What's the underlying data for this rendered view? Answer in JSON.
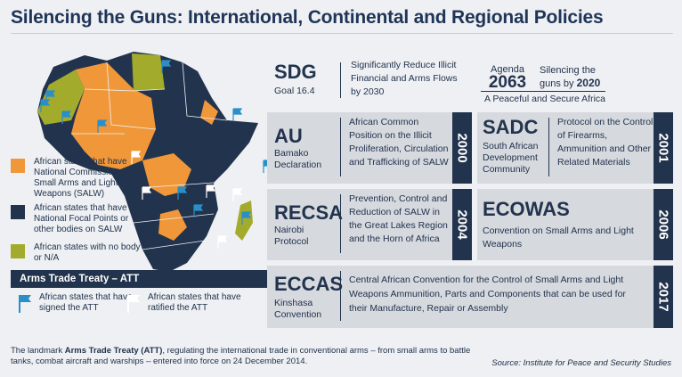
{
  "title": "Silencing the Guns: International, Continental and Regional Policies",
  "colors": {
    "orange": "#f0973a",
    "navy": "#22334d",
    "olive": "#a3ab2c",
    "flag_blue": "#2a8fc8",
    "flag_white": "#ffffff"
  },
  "legend": [
    {
      "color": "#f0973a",
      "text": "African states that have National Commissions on Small Arms and Light Weapons (SALW)"
    },
    {
      "color": "#22334d",
      "text": "African states that have National Focal Points or other bodies on SALW"
    },
    {
      "color": "#a3ab2c",
      "text": "African states with no body or N/A"
    }
  ],
  "att": {
    "header": "Arms Trade Treaty – ATT",
    "signed": "African states that have signed the ATT",
    "ratified": "African states that have ratified the ATT"
  },
  "sdg": {
    "name": "SDG",
    "sub": "Goal 16.4",
    "desc": "Significantly Reduce Illicit Financial and Arms Flows by 2030"
  },
  "agenda": {
    "label": "Agenda",
    "year": "2063",
    "tag1": "Silencing the",
    "tag2": "guns by",
    "tag_year": "2020",
    "footer": "A Peaceful and Secure Africa"
  },
  "au": {
    "name": "AU",
    "sub": "Bamako Declaration",
    "desc": "African Common Position on the Illicit Proliferation, Circulation and Trafficking of SALW",
    "year": "2000"
  },
  "sadc": {
    "name": "SADC",
    "sub": "South African Development Community",
    "desc": "Protocol on the Control of Firearms, Ammunition and Other Related Materials",
    "year": "2001"
  },
  "recsa": {
    "name": "RECSA",
    "sub": "Nairobi Protocol",
    "desc": "Prevention, Control and Reduction of SALW in the Great Lakes Region and the Horn of Africa",
    "year": "2004"
  },
  "ecowas": {
    "name": "ECOWAS",
    "desc": "Convention on Small Arms and Light Weapons",
    "year": "2006"
  },
  "eccas": {
    "name": "ECCAS",
    "sub": "Kinshasa Convention",
    "desc": "Central African Convention for the Control of Small Arms and Light Weapons Ammunition, Parts and Components that can be used for their Manufacture, Repair or Assembly",
    "year": "2017"
  },
  "footer": {
    "pre": "The landmark ",
    "bold": "Arms Trade Treaty (ATT)",
    "post": ", regulating the international trade in conventional arms – from small arms to battle tanks, combat aircraft and warships – entered into force on 24 December 2014."
  },
  "source": "Source:  Institute for Peace and Security Studies"
}
